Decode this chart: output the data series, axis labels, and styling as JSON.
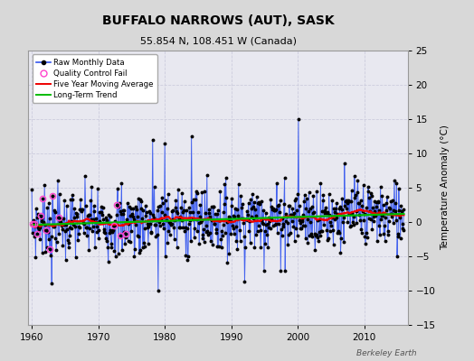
{
  "title": "BUFFALO NARROWS (AUT), SASK",
  "subtitle": "55.854 N, 108.451 W (Canada)",
  "ylabel": "Temperature Anomaly (°C)",
  "credit": "Berkeley Earth",
  "xlim": [
    1959.5,
    2016.5
  ],
  "ylim": [
    -15,
    25
  ],
  "yticks": [
    -15,
    -10,
    -5,
    0,
    5,
    10,
    15,
    20,
    25
  ],
  "xticks": [
    1960,
    1970,
    1980,
    1990,
    2000,
    2010
  ],
  "background_color": "#d8d8d8",
  "plot_bg_color": "#e8e8f0",
  "raw_color": "#3355ee",
  "dot_color": "#000000",
  "ma_color": "#ee0000",
  "trend_color": "#00bb00",
  "qc_color": "#ff44cc",
  "seed": 7
}
